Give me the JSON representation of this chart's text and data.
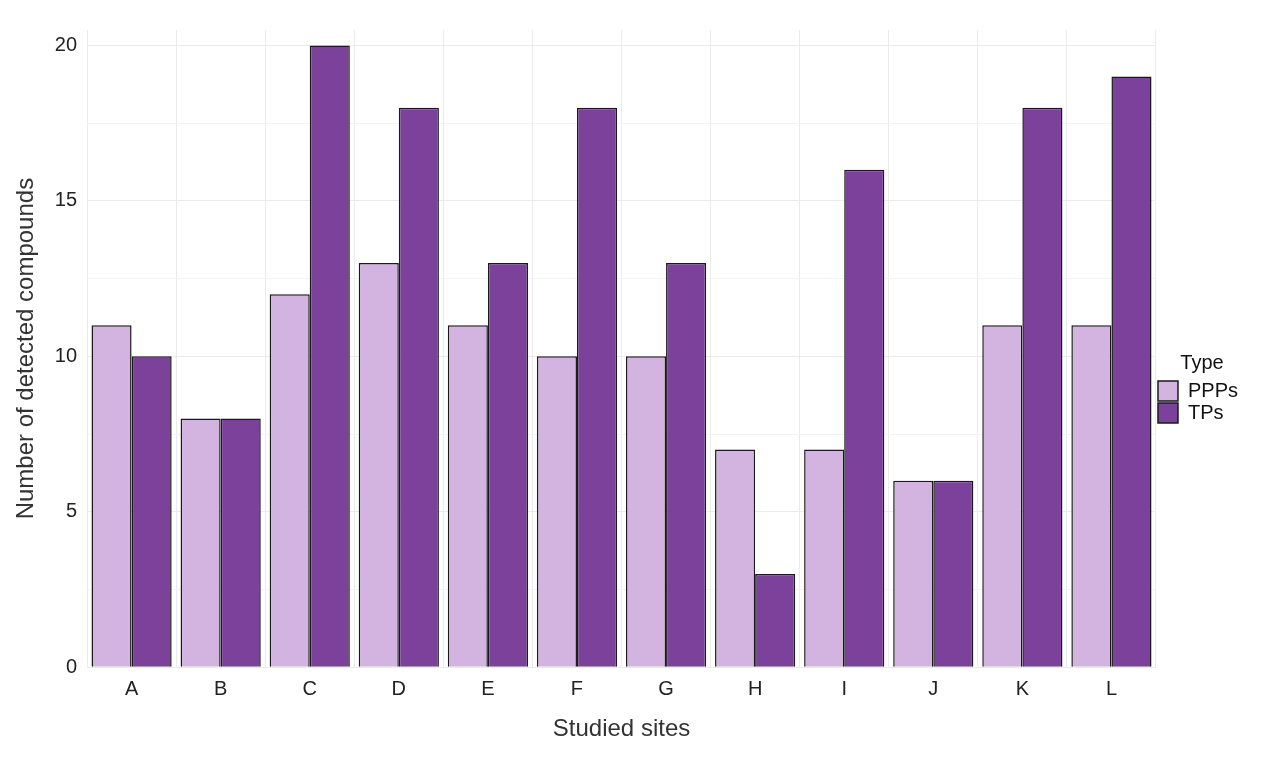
{
  "chart_data": {
    "type": "bar",
    "xlabel": "Studied sites",
    "ylabel": "Number of detected compounds",
    "legend_title": "Type",
    "categories": [
      "A",
      "B",
      "C",
      "D",
      "E",
      "F",
      "G",
      "H",
      "I",
      "J",
      "K",
      "L"
    ],
    "series": [
      {
        "name": "PPPs",
        "color": "#d3b4e1",
        "values": [
          11,
          8,
          12,
          13,
          11,
          10,
          10,
          7,
          7,
          6,
          11,
          11
        ]
      },
      {
        "name": "TPs",
        "color": "#7b419b",
        "values": [
          10,
          8,
          20,
          18,
          13,
          18,
          13,
          3,
          16,
          6,
          18,
          19
        ]
      }
    ],
    "ylim": [
      0,
      20.5
    ],
    "yticks": [
      0,
      {
        "value": 2.5,
        "label": null
      },
      5,
      {
        "value": 7.5,
        "label": null
      },
      10,
      {
        "value": 12.5,
        "label": null
      },
      15,
      {
        "value": 17.5,
        "label": null
      },
      20
    ],
    "grid": true,
    "legend": "right"
  }
}
